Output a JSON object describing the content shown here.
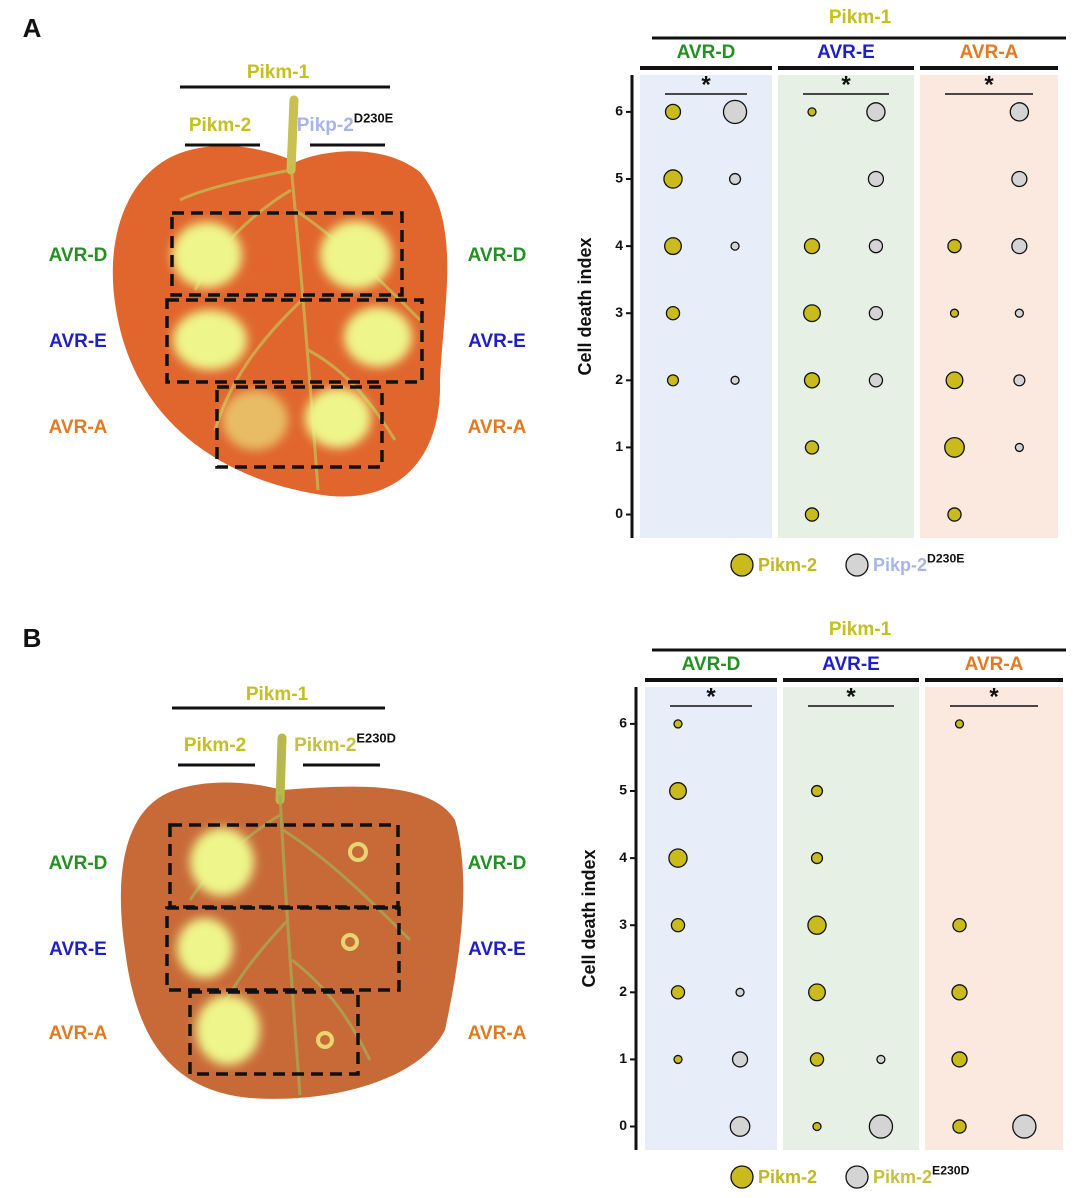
{
  "panels": [
    {
      "label": "A",
      "leaf": {
        "title": "Pikm-1",
        "left_name": "Pikm-2",
        "right_name": "Pikp-2",
        "right_sup": "D230E",
        "rows": [
          "AVR-D",
          "AVR-E",
          "AVR-A"
        ]
      }
    },
    {
      "label": "B",
      "leaf": {
        "title": "Pikm-1",
        "left_name": "Pikm-2",
        "right_name": "Pikm-2",
        "right_sup": "E230D",
        "rows": [
          "AVR-D",
          "AVR-E",
          "AVR-A"
        ]
      }
    }
  ],
  "chart_data": [
    {
      "type": "dotplot",
      "title": "Pikm-1",
      "ylabel": "Cell death index",
      "ylim": [
        -0.35,
        6.55
      ],
      "yticks": [
        0,
        1,
        2,
        3,
        4,
        5,
        6
      ],
      "series": [
        {
          "name": "Pikm-2",
          "color": "#c9bb1c",
          "label_color": "#bfb820"
        },
        {
          "name": "Pikp-2",
          "sup": "D230E",
          "color": "#d4d4d4",
          "label_color": "#a8b4ea"
        }
      ],
      "groups": [
        {
          "name": "AVR-D",
          "color": "#249024",
          "background": "#e8eef9",
          "significance": "*",
          "series": [
            {
              "y": [
                6,
                5,
                4,
                3,
                2
              ],
              "size": [
                4,
                6,
                5,
                3,
                2
              ]
            },
            {
              "y": [
                6,
                5,
                4,
                2
              ],
              "size": [
                10,
                2,
                1,
                1
              ]
            }
          ]
        },
        {
          "name": "AVR-E",
          "color": "#1f1fc8",
          "background": "#e6f0e4",
          "significance": "*",
          "series": [
            {
              "y": [
                6,
                4,
                3,
                2,
                1,
                0
              ],
              "size": [
                1,
                4,
                5,
                4,
                3,
                3
              ]
            },
            {
              "y": [
                6,
                5,
                4,
                3,
                2
              ],
              "size": [
                6,
                4,
                3,
                3,
                3
              ]
            }
          ]
        },
        {
          "name": "AVR-A",
          "color": "#e27a22",
          "background": "#fbe9df",
          "significance": "*",
          "series": [
            {
              "y": [
                4,
                3,
                2,
                1,
                0
              ],
              "size": [
                3,
                1,
                5,
                7,
                3
              ]
            },
            {
              "y": [
                6,
                5,
                4,
                3,
                2,
                1
              ],
              "size": [
                6,
                4,
                4,
                1,
                2,
                1
              ]
            }
          ]
        }
      ]
    },
    {
      "type": "dotplot",
      "title": "Pikm-1",
      "ylabel": "Cell death index",
      "ylim": [
        -0.35,
        6.55
      ],
      "yticks": [
        0,
        1,
        2,
        3,
        4,
        5,
        6
      ],
      "series": [
        {
          "name": "Pikm-2",
          "color": "#c9bb1c",
          "label_color": "#bfb820"
        },
        {
          "name": "Pikm-2",
          "sup": "E230D",
          "color": "#d4d4d4",
          "label_color": "#c4c040"
        }
      ],
      "groups": [
        {
          "name": "AVR-D",
          "color": "#249024",
          "background": "#e8eef9",
          "significance": "*",
          "series": [
            {
              "y": [
                6,
                5,
                4,
                3,
                2,
                1
              ],
              "size": [
                1,
                5,
                6,
                3,
                3,
                1
              ]
            },
            {
              "y": [
                2,
                1,
                0
              ],
              "size": [
                1,
                4,
                7
              ]
            }
          ]
        },
        {
          "name": "AVR-E",
          "color": "#1f1fc8",
          "background": "#e6f0e4",
          "significance": "*",
          "series": [
            {
              "y": [
                5,
                4,
                3,
                2,
                1,
                0
              ],
              "size": [
                2,
                2,
                6,
                5,
                3,
                1
              ]
            },
            {
              "y": [
                1,
                0
              ],
              "size": [
                1,
                10
              ]
            }
          ]
        },
        {
          "name": "AVR-A",
          "color": "#e27a22",
          "background": "#fbe9df",
          "significance": "*",
          "series": [
            {
              "y": [
                6,
                3,
                2,
                1,
                0
              ],
              "size": [
                1,
                3,
                4,
                4,
                3
              ]
            },
            {
              "y": [
                0
              ],
              "size": [
                10
              ]
            }
          ]
        }
      ]
    }
  ]
}
